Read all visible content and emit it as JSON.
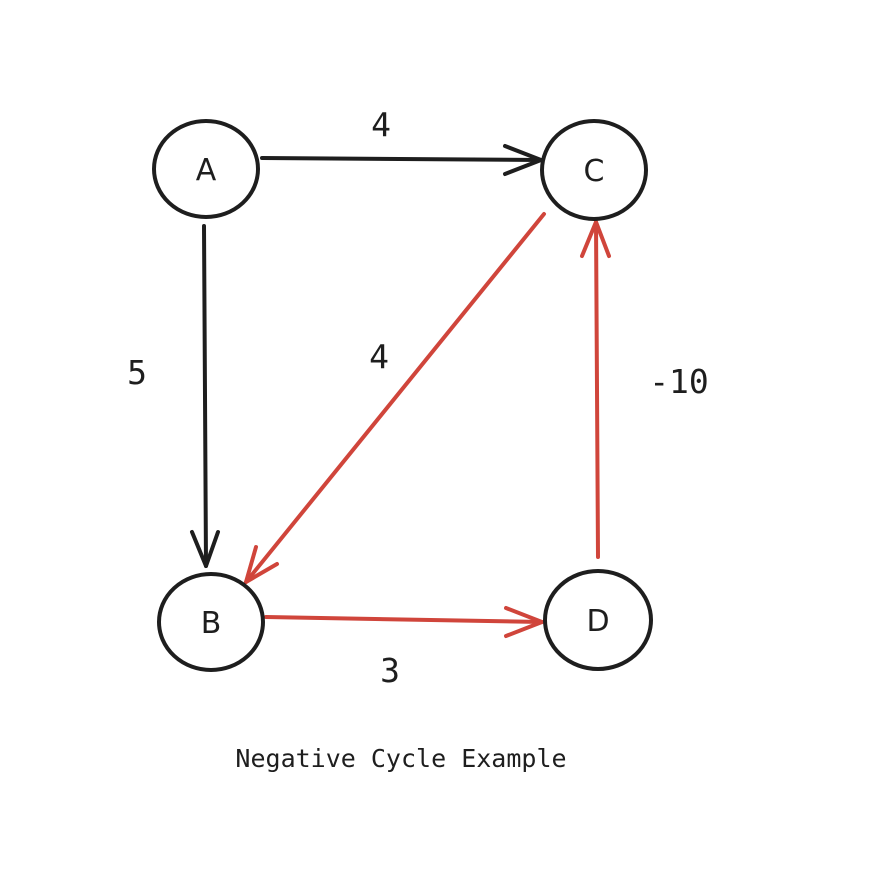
{
  "caption": "Negative Cycle Example",
  "colors": {
    "stroke": "#1e1e1e",
    "highlight": "#d0453b",
    "background": "#ffffff"
  },
  "nodes": [
    {
      "id": "A",
      "label": "A"
    },
    {
      "id": "B",
      "label": "B"
    },
    {
      "id": "C",
      "label": "C"
    },
    {
      "id": "D",
      "label": "D"
    }
  ],
  "edges": [
    {
      "from": "A",
      "to": "C",
      "weight": "4",
      "in_negative_cycle": false
    },
    {
      "from": "A",
      "to": "B",
      "weight": "5",
      "in_negative_cycle": false
    },
    {
      "from": "C",
      "to": "B",
      "weight": "4",
      "in_negative_cycle": true
    },
    {
      "from": "B",
      "to": "D",
      "weight": "3",
      "in_negative_cycle": true
    },
    {
      "from": "D",
      "to": "C",
      "weight": "-10",
      "in_negative_cycle": true
    }
  ]
}
